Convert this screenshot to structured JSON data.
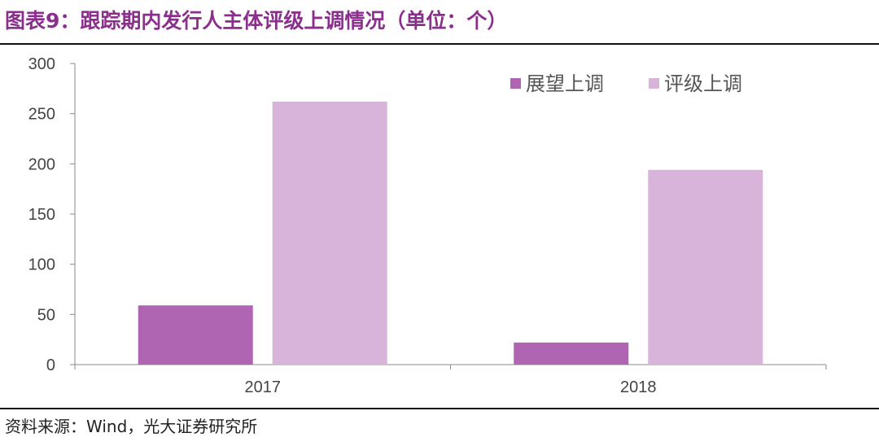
{
  "header": {
    "title": "图表9：跟踪期内发行人主体评级上调情况（单位：个）"
  },
  "footer": {
    "source": "资料来源：Wind，光大证券研究所"
  },
  "chart_data": {
    "type": "bar",
    "title": "图表9：跟踪期内发行人主体评级上调情况（单位：个）",
    "categories": [
      "2017",
      "2018"
    ],
    "series": [
      {
        "name": "展望上调",
        "values": [
          59,
          22
        ],
        "color": "#B065B2"
      },
      {
        "name": "评级上调",
        "values": [
          262,
          194
        ],
        "color": "#D8B4DB"
      }
    ],
    "yticks": [
      "0",
      "50",
      "100",
      "150",
      "200",
      "250",
      "300"
    ],
    "ylim": [
      0,
      300
    ],
    "xlabel": "",
    "ylabel": "",
    "legend_position": "top-right",
    "grid": false
  }
}
